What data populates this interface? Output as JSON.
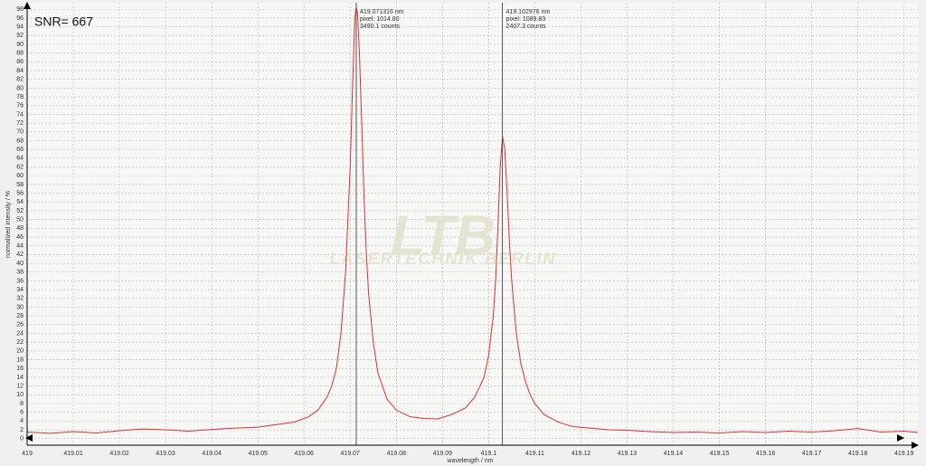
{
  "chart_data": {
    "type": "line",
    "annotation": "SNR= 667",
    "xlabel": "wavelength / nm",
    "ylabel": "normalized intensity / %",
    "watermark": [
      "LTB",
      "LASERTECHNIK BERLIN"
    ],
    "x": [
      419.0,
      419.005,
      419.01,
      419.015,
      419.02,
      419.025,
      419.03,
      419.035,
      419.04,
      419.045,
      419.05,
      419.054,
      419.058,
      419.061,
      419.063,
      419.065,
      419.066,
      419.067,
      419.068,
      419.069,
      419.07,
      419.0705,
      419.071,
      419.0713,
      419.0716,
      419.072,
      419.0725,
      419.073,
      419.0735,
      419.074,
      419.075,
      419.076,
      419.078,
      419.08,
      419.083,
      419.086,
      419.089,
      419.092,
      419.095,
      419.097,
      419.099,
      419.1,
      419.101,
      419.1015,
      419.102,
      419.1025,
      419.103,
      419.1035,
      419.104,
      419.1045,
      419.105,
      419.106,
      419.107,
      419.108,
      419.109,
      419.11,
      419.112,
      419.115,
      419.118,
      419.122,
      419.126,
      419.13,
      419.135,
      419.14,
      419.145,
      419.15,
      419.155,
      419.16,
      419.165,
      419.17,
      419.175,
      419.18,
      419.185,
      419.19,
      419.193
    ],
    "values": [
      1.5,
      1.2,
      1.6,
      1.3,
      1.8,
      2.2,
      2.0,
      1.7,
      2.1,
      2.4,
      2.6,
      3.2,
      3.8,
      5.0,
      6.5,
      9.5,
      12,
      16,
      24,
      38,
      62,
      80,
      96,
      98.5,
      97,
      88,
      72,
      55,
      42,
      33,
      22,
      15,
      9,
      6.5,
      5,
      4.6,
      4.5,
      5.5,
      7,
      9.5,
      14,
      19,
      28,
      36,
      48,
      62,
      69,
      66,
      56,
      45,
      36,
      24,
      17,
      13,
      10,
      8,
      5.5,
      3.8,
      2.8,
      2.4,
      2.0,
      1.9,
      1.6,
      1.4,
      1.5,
      1.3,
      1.6,
      1.4,
      1.7,
      1.5,
      1.8,
      2.3,
      1.5,
      1.7,
      1.4
    ],
    "color": "#e03030",
    "xlim": [
      419,
      419.193
    ],
    "ylim": [
      -1.5,
      99.5
    ],
    "xticks": [
      419,
      419.01,
      419.02,
      419.03,
      419.04,
      419.05,
      419.06,
      419.07,
      419.08,
      419.09,
      419.1,
      419.11,
      419.12,
      419.13,
      419.14,
      419.15,
      419.16,
      419.17,
      419.18,
      419.19
    ],
    "yticks": [
      0,
      2,
      4,
      6,
      8,
      10,
      12,
      14,
      16,
      18,
      20,
      22,
      24,
      26,
      28,
      30,
      32,
      34,
      36,
      38,
      40,
      42,
      44,
      46,
      48,
      50,
      52,
      54,
      56,
      58,
      60,
      62,
      64,
      66,
      68,
      70,
      72,
      74,
      76,
      78,
      80,
      82,
      84,
      86,
      88,
      90,
      92,
      94,
      96,
      98
    ],
    "grid": true,
    "cursors": [
      {
        "x": 419.071316,
        "lines": [
          "419.071316 nm",
          "pixel:  1014.80",
          "3490.1 counts"
        ]
      },
      {
        "x": 419.102976,
        "lines": [
          "419.102976 nm",
          "pixel:  1089.83",
          "2407.3 counts"
        ]
      }
    ]
  }
}
